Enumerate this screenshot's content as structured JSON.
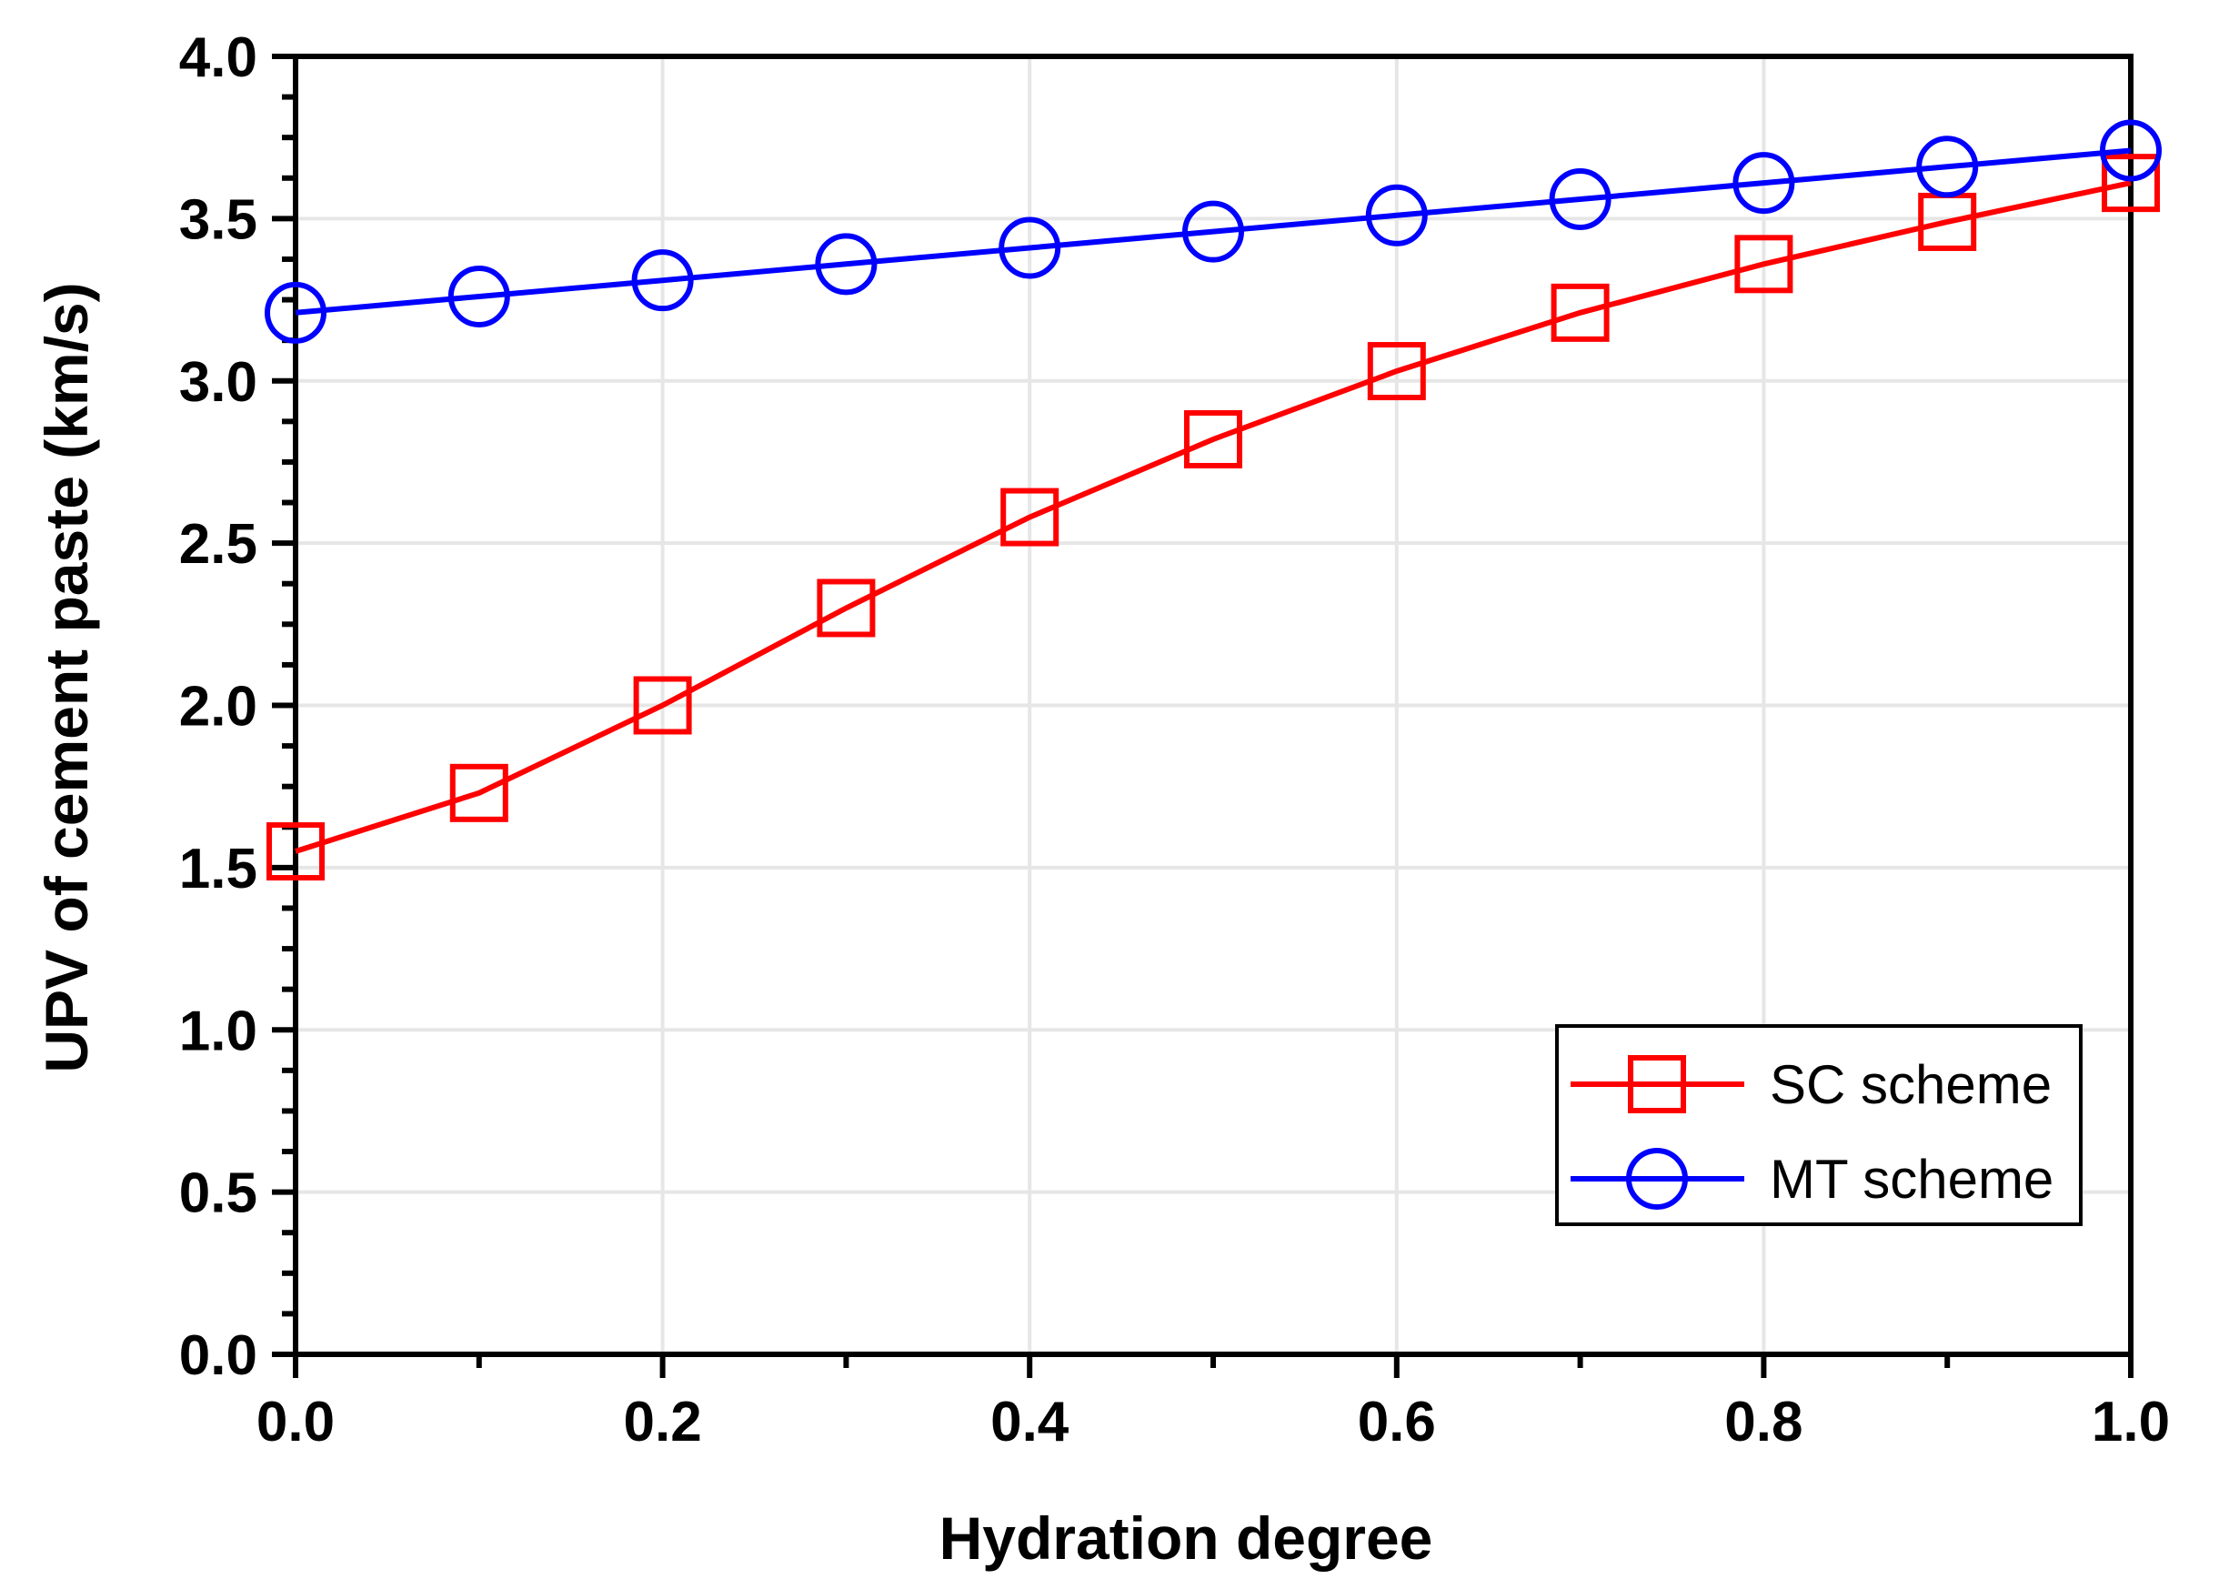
{
  "chart_data": {
    "type": "line",
    "title": "",
    "xlabel": "Hydration degree",
    "ylabel": "UPV of cement paste (km/s)",
    "xlim": [
      0.0,
      1.0
    ],
    "ylim": [
      0.0,
      4.0
    ],
    "x": [
      0.0,
      0.1,
      0.2,
      0.3,
      0.4,
      0.5,
      0.6,
      0.7,
      0.8,
      0.9,
      1.0
    ],
    "x_ticks": [
      0.0,
      0.2,
      0.4,
      0.6,
      0.8,
      1.0
    ],
    "x_tick_labels": [
      "0.0",
      "0.2",
      "0.4",
      "0.6",
      "0.8",
      "1.0"
    ],
    "y_ticks": [
      0.0,
      0.5,
      1.0,
      1.5,
      2.0,
      2.5,
      3.0,
      3.5,
      4.0
    ],
    "y_tick_labels": [
      "0.0",
      "0.5",
      "1.0",
      "1.5",
      "2.0",
      "2.5",
      "3.0",
      "3.5",
      "4.0"
    ],
    "grid": true,
    "legend_position": "bottom-right",
    "series": [
      {
        "name": "SC scheme",
        "marker": "square",
        "color": "#ff0000",
        "values": [
          1.55,
          1.73,
          2.0,
          2.3,
          2.58,
          2.82,
          3.03,
          3.21,
          3.36,
          3.49,
          3.61
        ]
      },
      {
        "name": "MT scheme",
        "marker": "circle",
        "color": "#0000ff",
        "values": [
          3.21,
          3.26,
          3.31,
          3.36,
          3.41,
          3.46,
          3.51,
          3.56,
          3.61,
          3.66,
          3.71
        ]
      }
    ]
  }
}
